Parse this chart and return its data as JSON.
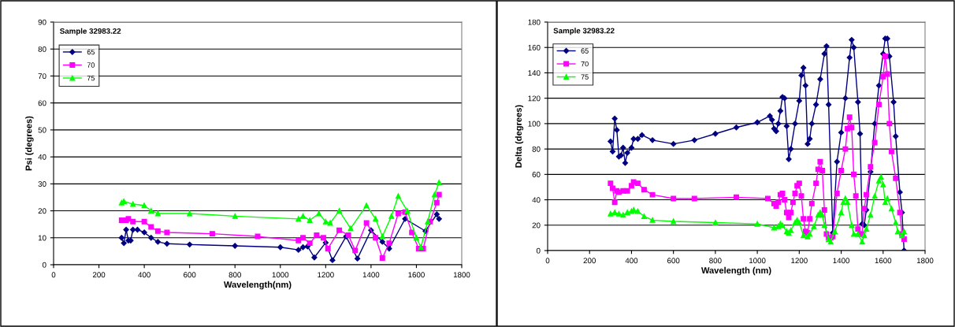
{
  "chart_data": [
    {
      "type": "line",
      "title": "Sample 32983.22",
      "xlabel": "Wavelength(nm)",
      "ylabel": "Psi (degrees)",
      "xlim": [
        0,
        1800
      ],
      "xticks": [
        0,
        200,
        400,
        600,
        800,
        1000,
        1200,
        1400,
        1600,
        1800
      ],
      "ylim": [
        0,
        90
      ],
      "yticks": [
        0,
        10,
        20,
        30,
        40,
        50,
        60,
        70,
        80,
        90
      ],
      "grid": "y",
      "legend": "top left",
      "series": [
        {
          "name": "65",
          "color": "#000080",
          "marker": "diamond",
          "x": [
            300,
            310,
            320,
            330,
            340,
            350,
            370,
            400,
            430,
            460,
            500,
            600,
            800,
            1000,
            1080,
            1100,
            1120,
            1150,
            1200,
            1230,
            1290,
            1340,
            1400,
            1450,
            1480,
            1550,
            1640,
            1690,
            1700
          ],
          "values": [
            10,
            8,
            13,
            9,
            9,
            13,
            13,
            12,
            10,
            8.5,
            7.8,
            7.5,
            7,
            6.5,
            5.5,
            6.5,
            6.8,
            2.7,
            8.2,
            1.7,
            10.5,
            2.3,
            12.8,
            8.5,
            6,
            17,
            12.5,
            18.7,
            17
          ]
        },
        {
          "name": "70",
          "color": "#ff00ff",
          "marker": "square",
          "x": [
            300,
            320,
            330,
            350,
            400,
            430,
            460,
            500,
            700,
            900,
            1080,
            1100,
            1130,
            1160,
            1190,
            1210,
            1260,
            1300,
            1330,
            1380,
            1420,
            1450,
            1480,
            1520,
            1550,
            1580,
            1610,
            1630,
            1660,
            1690,
            1700
          ],
          "values": [
            16.5,
            16.5,
            17,
            16,
            16,
            14,
            12.5,
            12,
            11.5,
            10.5,
            9,
            10,
            8,
            11,
            10,
            6,
            12.8,
            11,
            5.3,
            15.5,
            10,
            2.5,
            8,
            19,
            19.5,
            12,
            6,
            6,
            16,
            23,
            26
          ]
        },
        {
          "name": "75",
          "color": "#00ff00",
          "marker": "triangle",
          "x": [
            300,
            310,
            350,
            400,
            430,
            460,
            600,
            800,
            1080,
            1100,
            1130,
            1170,
            1200,
            1220,
            1260,
            1310,
            1380,
            1420,
            1450,
            1490,
            1520,
            1560,
            1600,
            1620,
            1650,
            1680,
            1700
          ],
          "values": [
            23,
            23.5,
            22.5,
            22,
            20,
            19,
            19,
            18,
            17,
            18,
            16.5,
            19,
            16,
            15.5,
            20,
            13.5,
            22,
            17,
            10.5,
            18,
            25.5,
            20,
            10,
            6.5,
            16,
            26,
            30.5
          ]
        }
      ]
    },
    {
      "type": "line",
      "title": "Sample 32983.22",
      "xlabel": "Wavelength (nm)",
      "ylabel": "Delta (degrees)",
      "xlim": [
        0,
        1800
      ],
      "xticks": [
        0,
        200,
        400,
        600,
        800,
        1000,
        1200,
        1400,
        1600,
        1800
      ],
      "ylim": [
        0,
        180
      ],
      "yticks": [
        0,
        20,
        40,
        60,
        80,
        100,
        120,
        140,
        160,
        180
      ],
      "grid": "y",
      "legend": "top left",
      "series": [
        {
          "name": "65",
          "color": "#000080",
          "marker": "diamond",
          "x": [
            300,
            310,
            320,
            330,
            340,
            350,
            360,
            370,
            380,
            400,
            410,
            430,
            450,
            500,
            600,
            700,
            800,
            900,
            1000,
            1060,
            1070,
            1080,
            1090,
            1100,
            1110,
            1120,
            1130,
            1140,
            1150,
            1160,
            1180,
            1200,
            1210,
            1220,
            1230,
            1240,
            1250,
            1260,
            1280,
            1300,
            1320,
            1330,
            1340,
            1360,
            1380,
            1400,
            1420,
            1440,
            1450,
            1460,
            1480,
            1490,
            1500,
            1510,
            1520,
            1540,
            1560,
            1580,
            1600,
            1610,
            1620,
            1630,
            1650,
            1660,
            1680,
            1690,
            1700
          ],
          "values": [
            86,
            78,
            104,
            95,
            74,
            75,
            81,
            69,
            77,
            81,
            88,
            88,
            91,
            87,
            84,
            87,
            92,
            97,
            101,
            106,
            103,
            96,
            94,
            100,
            110,
            121,
            120,
            98,
            72,
            80,
            100,
            118,
            138,
            144,
            130,
            84,
            88,
            100,
            115,
            135,
            155,
            161,
            115,
            14,
            70,
            93,
            120,
            152,
            166,
            160,
            117,
            92,
            21,
            20,
            32,
            62,
            100,
            130,
            155,
            167,
            167,
            153,
            117,
            90,
            46,
            30,
            0
          ]
        },
        {
          "name": "70",
          "color": "#ff00ff",
          "marker": "square",
          "x": [
            300,
            310,
            320,
            330,
            340,
            360,
            380,
            400,
            410,
            430,
            460,
            500,
            600,
            700,
            900,
            1050,
            1080,
            1090,
            1100,
            1110,
            1120,
            1130,
            1140,
            1150,
            1160,
            1170,
            1180,
            1190,
            1200,
            1210,
            1220,
            1230,
            1240,
            1250,
            1260,
            1280,
            1290,
            1300,
            1310,
            1320,
            1330,
            1340,
            1350,
            1360,
            1380,
            1400,
            1420,
            1430,
            1440,
            1450,
            1460,
            1470,
            1480,
            1490,
            1500,
            1510,
            1520,
            1540,
            1560,
            1580,
            1600,
            1610,
            1620,
            1630,
            1640,
            1660,
            1680,
            1690,
            1700
          ],
          "values": [
            53,
            49,
            38,
            47,
            46,
            47,
            47,
            51,
            54,
            53,
            48,
            44,
            41,
            41,
            42,
            41,
            37,
            35,
            38,
            44,
            45,
            40,
            30,
            26,
            30,
            38,
            45,
            51,
            53,
            43,
            25,
            15,
            14,
            25,
            37,
            53,
            64,
            70,
            63,
            32,
            13,
            10,
            10,
            11,
            45,
            63,
            80,
            96,
            105,
            97,
            60,
            43,
            17,
            13,
            13,
            33,
            44,
            66,
            85,
            115,
            137,
            153,
            139,
            100,
            78,
            57,
            30,
            13,
            9
          ]
        },
        {
          "name": "75",
          "color": "#00ff00",
          "marker": "triangle",
          "x": [
            300,
            320,
            340,
            360,
            380,
            400,
            410,
            430,
            460,
            500,
            600,
            800,
            1000,
            1080,
            1100,
            1110,
            1120,
            1140,
            1150,
            1160,
            1180,
            1190,
            1200,
            1220,
            1240,
            1250,
            1270,
            1290,
            1300,
            1310,
            1320,
            1340,
            1350,
            1370,
            1400,
            1410,
            1420,
            1430,
            1450,
            1460,
            1480,
            1500,
            1510,
            1520,
            1540,
            1560,
            1580,
            1590,
            1600,
            1610,
            1620,
            1640,
            1660,
            1670,
            1690,
            1700
          ],
          "values": [
            29,
            30,
            29,
            28,
            30,
            31,
            32,
            31,
            27,
            24,
            23,
            22,
            21,
            18,
            19,
            21,
            20,
            15,
            14,
            16,
            22,
            24,
            22,
            12,
            11,
            13,
            19,
            28,
            30,
            28,
            20,
            9,
            7,
            15,
            30,
            38,
            41,
            38,
            20,
            13,
            13,
            7,
            12,
            17,
            28,
            43,
            55,
            58,
            52,
            38,
            41,
            33,
            22,
            15,
            12,
            15
          ]
        }
      ]
    }
  ]
}
